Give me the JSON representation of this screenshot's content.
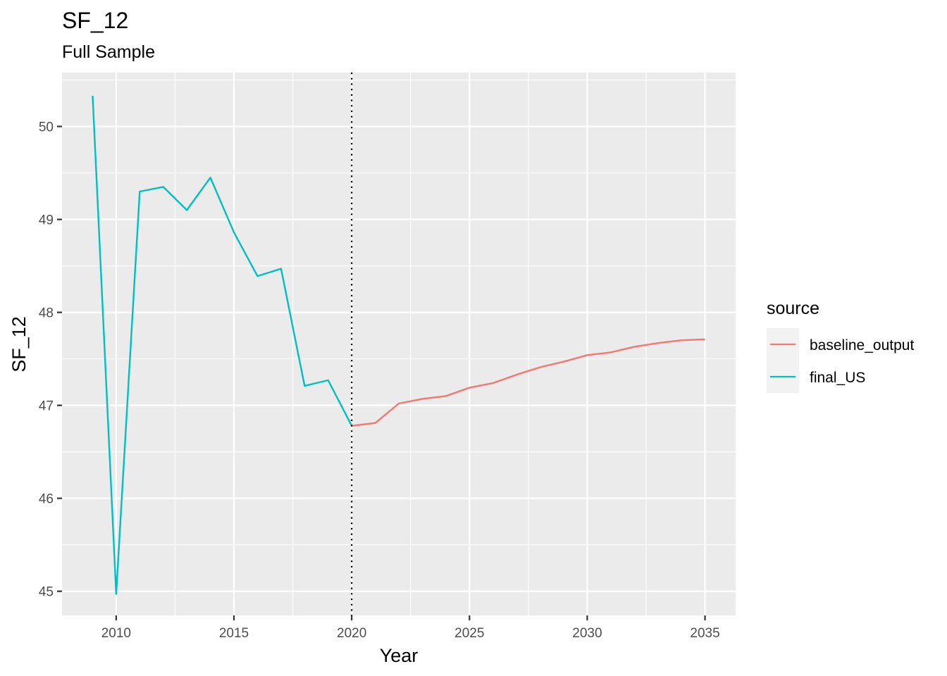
{
  "chart_data": {
    "type": "line",
    "title": "SF_12",
    "subtitle": "Full Sample",
    "xlabel": "Year",
    "ylabel": "SF_12",
    "xlim": [
      2007.7,
      2036.3
    ],
    "ylim": [
      44.74,
      50.58
    ],
    "x_ticks": [
      2010,
      2015,
      2020,
      2025,
      2030,
      2035
    ],
    "x_tick_labels": [
      "2010",
      "2015",
      "2020",
      "2025",
      "2030",
      "2035"
    ],
    "y_ticks": [
      45,
      46,
      47,
      48,
      49,
      50
    ],
    "y_tick_labels": [
      "45",
      "46",
      "47",
      "48",
      "49",
      "50"
    ],
    "grid": true,
    "vline": {
      "x": 2020,
      "style": "dotted",
      "color": "#000000"
    },
    "legend": {
      "title": "source",
      "position": "right"
    },
    "series": [
      {
        "name": "baseline_output",
        "color": "#F8766D",
        "x": [
          2020,
          2021,
          2022,
          2023,
          2024,
          2025,
          2026,
          2027,
          2028,
          2029,
          2030,
          2031,
          2032,
          2033,
          2034,
          2035
        ],
        "y": [
          46.78,
          46.81,
          47.02,
          47.07,
          47.1,
          47.19,
          47.24,
          47.33,
          47.41,
          47.47,
          47.54,
          47.57,
          47.63,
          47.67,
          47.7,
          47.71
        ]
      },
      {
        "name": "final_US",
        "color": "#00BFC4",
        "x": [
          2009,
          2010,
          2011,
          2012,
          2013,
          2014,
          2015,
          2016,
          2017,
          2018,
          2019,
          2020
        ],
        "y": [
          50.33,
          44.97,
          49.3,
          49.35,
          49.1,
          49.45,
          48.86,
          48.39,
          48.47,
          47.21,
          47.27,
          46.78
        ]
      }
    ]
  }
}
